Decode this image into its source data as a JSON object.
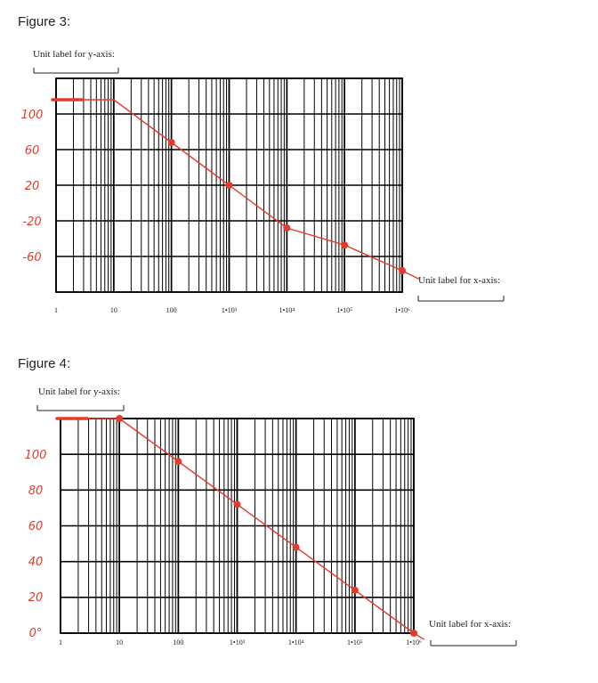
{
  "colors": {
    "ink": "#e53a2a",
    "grid": "#000000",
    "text": "#222222"
  },
  "figures": [
    {
      "title": "Figure 3:",
      "y_unit_label": "Unit label for y-axis:",
      "x_unit_label": "Unit label for x-axis:"
    },
    {
      "title": "Figure 4:",
      "y_unit_label": "Unit label for y-axis:",
      "x_unit_label": "Unit label for x-axis:"
    }
  ],
  "chart_data": [
    {
      "type": "line",
      "x_scale": "log",
      "xlim": [
        1,
        1000000
      ],
      "x_tick_labels": [
        "1",
        "10",
        "100",
        "1•10³",
        "1•10⁴",
        "1•10⁵",
        "1•10⁶"
      ],
      "y_tick_labels": [
        "100",
        "60",
        "20",
        "-20",
        "-60"
      ],
      "ylim": [
        -80,
        120
      ],
      "grid": true,
      "series": [
        {
          "x": [
            1,
            10,
            100,
            1000,
            10000,
            100000,
            1000000,
            2000000
          ],
          "y": [
            100,
            100,
            60,
            20,
            -20,
            -36,
            -60,
            -68
          ],
          "markers": [
            100,
            1000,
            10000,
            100000,
            1000000
          ]
        }
      ]
    },
    {
      "type": "line",
      "x_scale": "log",
      "xlim": [
        1,
        1000000
      ],
      "x_tick_labels": [
        "1",
        "10",
        "100",
        "1•10³",
        "1•10⁴",
        "1•10⁵",
        "1•10⁶"
      ],
      "y_tick_labels": [
        "100",
        "80",
        "60",
        "40",
        "20",
        "0°"
      ],
      "ylim": [
        0,
        100
      ],
      "grid": true,
      "series": [
        {
          "x": [
            1,
            10,
            100,
            1000,
            10000,
            100000,
            1000000,
            1500000
          ],
          "y": [
            100,
            100,
            80,
            60,
            40,
            20,
            0,
            -3
          ],
          "markers": [
            10,
            100,
            1000,
            10000,
            100000,
            1000000
          ]
        }
      ]
    }
  ]
}
